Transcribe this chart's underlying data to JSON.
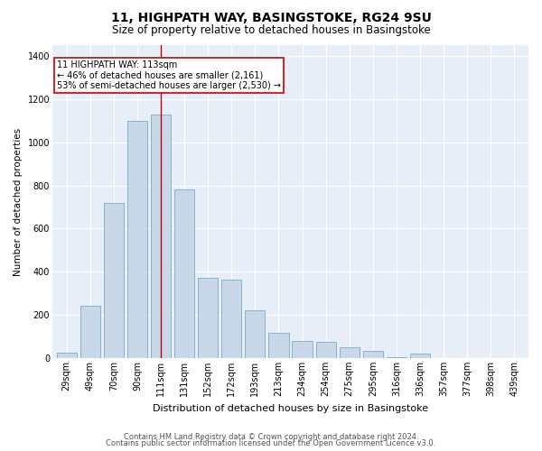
{
  "title1": "11, HIGHPATH WAY, BASINGSTOKE, RG24 9SU",
  "title2": "Size of property relative to detached houses in Basingstoke",
  "xlabel": "Distribution of detached houses by size in Basingstoke",
  "ylabel": "Number of detached properties",
  "categories": [
    "29sqm",
    "49sqm",
    "70sqm",
    "90sqm",
    "111sqm",
    "131sqm",
    "152sqm",
    "172sqm",
    "193sqm",
    "213sqm",
    "234sqm",
    "254sqm",
    "275sqm",
    "295sqm",
    "316sqm",
    "336sqm",
    "357sqm",
    "377sqm",
    "398sqm",
    "439sqm"
  ],
  "values": [
    25,
    240,
    720,
    1100,
    1130,
    780,
    370,
    365,
    220,
    115,
    80,
    75,
    50,
    35,
    2,
    20,
    0,
    0,
    0,
    0
  ],
  "bar_color": "#c8d8e8",
  "bar_edge_color": "#7aaac8",
  "red_line_index": 4,
  "annotation_text": "11 HIGHPATH WAY: 113sqm\n← 46% of detached houses are smaller (2,161)\n53% of semi-detached houses are larger (2,530) →",
  "annotation_box_color": "#ffffff",
  "annotation_box_edge": "#cc0000",
  "red_line_color": "#cc0000",
  "plot_bg_color": "#e8eef8",
  "footer1": "Contains HM Land Registry data © Crown copyright and database right 2024.",
  "footer2": "Contains public sector information licensed under the Open Government Licence v3.0.",
  "ylim": [
    0,
    1450
  ],
  "yticks": [
    0,
    200,
    400,
    600,
    800,
    1000,
    1200,
    1400
  ],
  "title1_fontsize": 10,
  "title2_fontsize": 8.5,
  "xlabel_fontsize": 8,
  "ylabel_fontsize": 7.5,
  "tick_fontsize": 7,
  "footer_fontsize": 6,
  "annotation_fontsize": 7
}
